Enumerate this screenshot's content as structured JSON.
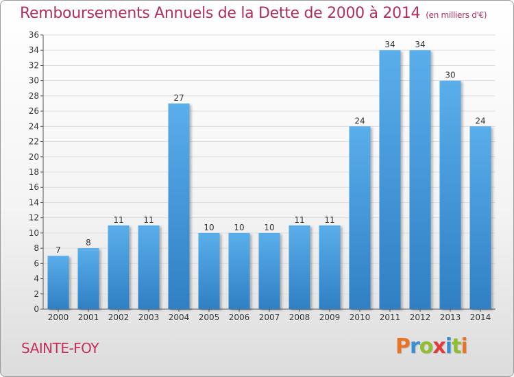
{
  "header": {
    "title": "Remboursements Annuels de la Dette de 2000 à 2014",
    "unit": "(en milliers d'€)"
  },
  "footer": {
    "commune": "SAINTE-FOY",
    "brand": "Proxiti",
    "brand_colors": [
      "#e8742a",
      "#3a8fd0",
      "#8fbe2e",
      "#e03a3a",
      "#3a8fd0",
      "#8fbe2e",
      "#e8742a"
    ]
  },
  "chart_data": {
    "type": "bar",
    "title": "Remboursements Annuels de la Dette de 2000 à 2014",
    "subtitle": "(en milliers d'€)",
    "categories": [
      "2000",
      "2001",
      "2002",
      "2003",
      "2004",
      "2005",
      "2006",
      "2007",
      "2008",
      "2009",
      "2010",
      "2011",
      "2012",
      "2013",
      "2014"
    ],
    "values": [
      7,
      8,
      11,
      11,
      27,
      10,
      10,
      10,
      11,
      11,
      24,
      34,
      34,
      30,
      24
    ],
    "ylim": [
      0,
      36
    ],
    "yticks": [
      0,
      2,
      4,
      6,
      8,
      10,
      12,
      14,
      16,
      18,
      20,
      22,
      24,
      26,
      28,
      30,
      32,
      34,
      36
    ],
    "grid": true,
    "bar_color": "#4a9fe0",
    "grid_color": "#dddddd",
    "axis_color": "#555555"
  }
}
